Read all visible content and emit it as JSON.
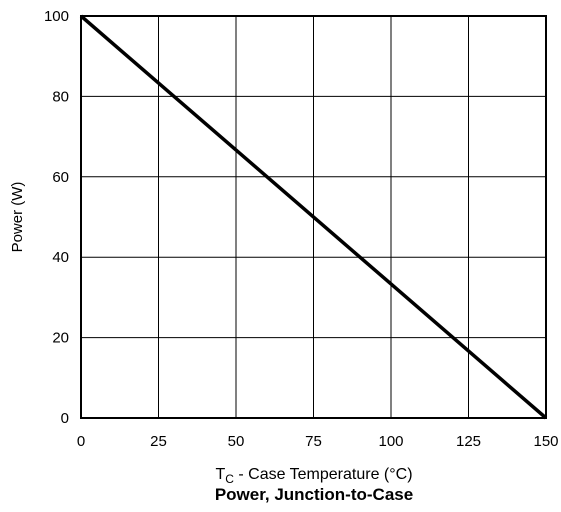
{
  "chart_data": {
    "type": "line",
    "title": "Power, Junction-to-Case",
    "xlabel": {
      "main": "T",
      "subscript": "C",
      "rest": " - Case Temperature (°C)"
    },
    "ylabel": "Power (W)",
    "xlim": [
      0,
      150
    ],
    "ylim": [
      0,
      100
    ],
    "x_ticks": [
      "0",
      "25",
      "50",
      "75",
      "100",
      "125",
      "150"
    ],
    "y_ticks": [
      "0",
      "20",
      "40",
      "60",
      "80",
      "100"
    ],
    "grid": true,
    "series": [
      {
        "x": [
          0,
          150
        ],
        "y": [
          100,
          0
        ],
        "color": "#000000"
      }
    ]
  }
}
